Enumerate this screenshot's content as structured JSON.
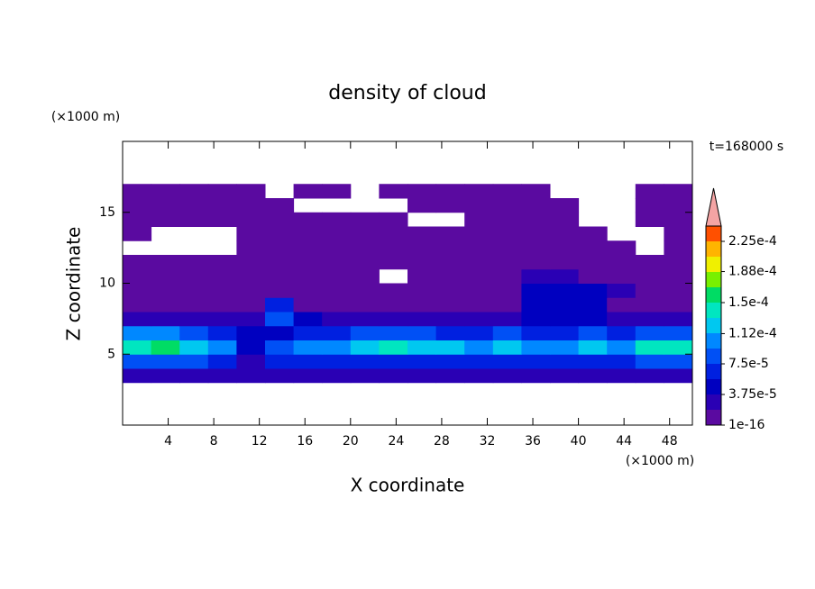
{
  "chart_data": {
    "type": "contour",
    "title": "density of cloud",
    "x_label": "X coordinate",
    "y_label": "Z coordinate",
    "x_unit": "(×1000 m)",
    "y_unit": "(×1000 m)",
    "annotation": "t=168000 s",
    "xlim": [
      0,
      50
    ],
    "ylim": [
      0,
      20
    ],
    "xticks": [
      4,
      8,
      12,
      16,
      20,
      24,
      28,
      32,
      36,
      40,
      44,
      48
    ],
    "yticks": [
      5,
      10,
      15
    ],
    "field": {
      "xbins": [
        0,
        2.5,
        5,
        7.5,
        10,
        12.5,
        15,
        17.5,
        20,
        22.5,
        25,
        27.5,
        30,
        32.5,
        35,
        37.5,
        40,
        42.5,
        45,
        47.5,
        50
      ],
      "zbins": [
        3,
        4,
        5,
        6,
        7,
        8,
        9,
        10,
        11,
        12,
        13,
        14,
        15,
        16,
        17
      ],
      "values": [
        [
          2e-05,
          2e-05,
          2e-05,
          2e-05,
          2e-05,
          2e-05,
          2e-05,
          2e-05,
          2e-05,
          2e-05,
          2e-05,
          2e-05,
          2e-05,
          2e-05,
          2e-05,
          2e-05,
          2e-05,
          2e-05,
          2e-05,
          2e-05
        ],
        [
          9e-05,
          9e-05,
          9e-05,
          6e-05,
          3e-05,
          6e-05,
          6e-05,
          6e-05,
          6e-05,
          6e-05,
          6e-05,
          6e-05,
          6e-05,
          6e-05,
          6e-05,
          6e-05,
          6e-05,
          6e-05,
          9e-05,
          9e-05
        ],
        [
          0.00015,
          0.00016,
          0.00013,
          0.0001,
          5e-05,
          8e-05,
          0.0001,
          0.00011,
          0.00012,
          0.00014,
          0.00013,
          0.00012,
          0.0001,
          0.00013,
          0.0001,
          0.00011,
          0.00012,
          0.00011,
          0.00015,
          0.00014
        ],
        [
          0.0001,
          0.00011,
          9e-05,
          7e-05,
          4e-05,
          5e-05,
          6e-05,
          7e-05,
          8e-05,
          8e-05,
          8e-05,
          7e-05,
          6e-05,
          8e-05,
          7e-05,
          7e-05,
          8e-05,
          7e-05,
          9e-05,
          9e-05
        ],
        [
          3e-05,
          3e-05,
          3e-05,
          3e-05,
          3e-05,
          8e-05,
          4e-05,
          3e-05,
          3e-05,
          3e-05,
          3e-05,
          3e-05,
          3e-05,
          3e-05,
          4e-05,
          5e-05,
          4e-05,
          3e-05,
          3e-05,
          3e-05
        ],
        [
          1.5e-05,
          1.5e-05,
          1.5e-05,
          1.5e-05,
          1.5e-05,
          7e-05,
          1.5e-05,
          1.5e-05,
          1.5e-05,
          1.5e-05,
          1.5e-05,
          1.5e-05,
          1.5e-05,
          1.5e-05,
          5e-05,
          5e-05,
          5e-05,
          1.5e-05,
          1.5e-05,
          1.5e-05
        ],
        [
          1e-16,
          1e-16,
          1e-16,
          1e-16,
          1e-16,
          1e-16,
          1e-16,
          1e-16,
          1e-05,
          1e-05,
          1e-16,
          1e-16,
          1e-16,
          1e-16,
          4e-05,
          4e-05,
          4e-05,
          2e-05,
          1e-16,
          1e-16
        ],
        [
          1e-16,
          1e-16,
          1e-16,
          1e-16,
          1e-16,
          1e-16,
          1e-16,
          1e-16,
          1e-16,
          null,
          1e-16,
          1e-16,
          1e-16,
          1e-16,
          2e-05,
          2e-05,
          1e-16,
          1e-16,
          1e-16,
          1e-16
        ],
        [
          1e-16,
          1e-16,
          1e-16,
          1e-16,
          1e-16,
          1e-16,
          1e-16,
          1e-16,
          1e-16,
          1e-16,
          1e-16,
          1e-16,
          1e-16,
          1e-16,
          1e-16,
          1e-16,
          1e-16,
          1e-16,
          1e-16,
          1e-16
        ],
        [
          null,
          null,
          null,
          null,
          1e-16,
          1e-16,
          1e-16,
          1e-16,
          1e-16,
          1e-16,
          1e-16,
          1e-16,
          1e-16,
          1e-16,
          1e-16,
          1e-16,
          1e-16,
          1e-16,
          null,
          1e-16
        ],
        [
          1e-16,
          null,
          null,
          null,
          1e-16,
          1e-16,
          1e-16,
          1e-16,
          1e-16,
          1e-16,
          1e-16,
          1e-16,
          1e-16,
          1e-16,
          1e-16,
          1e-16,
          1e-16,
          null,
          null,
          1e-16
        ],
        [
          1e-16,
          1e-16,
          1e-16,
          1e-16,
          1e-16,
          1e-16,
          1e-16,
          1e-16,
          1e-16,
          1e-16,
          null,
          null,
          1e-16,
          1e-16,
          1e-16,
          1e-16,
          null,
          null,
          1e-16,
          1e-16
        ],
        [
          1e-16,
          1e-16,
          1e-16,
          1e-16,
          1e-16,
          1e-16,
          null,
          null,
          null,
          null,
          1e-16,
          1e-16,
          1e-16,
          1e-16,
          1e-16,
          1e-16,
          null,
          null,
          1e-16,
          1e-16
        ],
        [
          1e-16,
          1e-16,
          1e-16,
          1e-16,
          1e-16,
          null,
          1e-16,
          1e-16,
          null,
          1e-16,
          1e-16,
          1e-16,
          1e-16,
          1e-16,
          1e-16,
          null,
          null,
          null,
          1e-16,
          1e-16
        ]
      ]
    },
    "colorbar": {
      "clim": [
        1e-16,
        0.00024375
      ],
      "colors": [
        "#5a0aa0",
        "#2a00b4",
        "#0000c0",
        "#0020e0",
        "#0050f5",
        "#0088ff",
        "#00c8f0",
        "#00e6c0",
        "#00dc64",
        "#78f000",
        "#f0f000",
        "#ffb400",
        "#ff5000"
      ],
      "extend_color": "#f4a4a4",
      "ticks": [
        {
          "value": 1e-16,
          "label": "1e-16"
        },
        {
          "value": 3.75e-05,
          "label": "3.75e-5"
        },
        {
          "value": 7.5e-05,
          "label": "7.5e-5"
        },
        {
          "value": 0.000112,
          "label": "1.12e-4"
        },
        {
          "value": 0.00015,
          "label": "1.5e-4"
        },
        {
          "value": 0.000188,
          "label": "1.88e-4"
        },
        {
          "value": 0.000225,
          "label": "2.25e-4"
        }
      ]
    }
  }
}
